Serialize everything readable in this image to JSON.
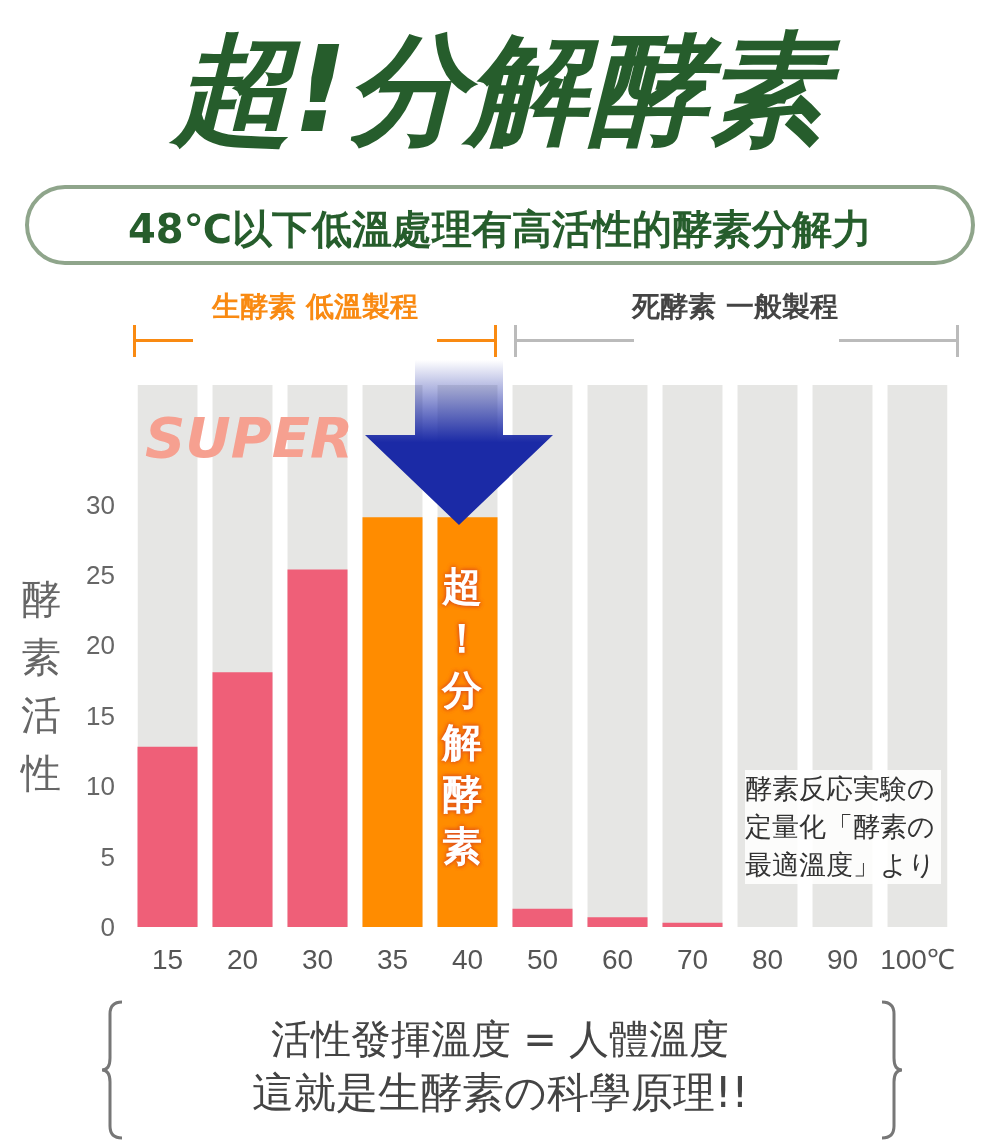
{
  "chart_data": {
    "type": "bar",
    "title": "超!分解酵素",
    "subtitle": "48℃以下低溫處理有高活性的酵素分解力",
    "ylabel": "酵素活性",
    "categories": [
      "15",
      "20",
      "30",
      "35",
      "40",
      "50",
      "60",
      "70",
      "80",
      "90",
      "100℃"
    ],
    "values": [
      12.8,
      18.1,
      25.4,
      29.1,
      29.1,
      1.3,
      0.7,
      0.3,
      0,
      0,
      0
    ],
    "colors": [
      "#ef5f78",
      "#ef5f78",
      "#ef5f78",
      "#ff8c00",
      "#ff8c00",
      "#ef5f78",
      "#ef5f78",
      "#ef5f78",
      "#ef5f78",
      "#ef5f78",
      "#ef5f78"
    ],
    "ylim": [
      0,
      38.5
    ],
    "yticks": [
      0,
      5,
      10,
      15,
      20,
      25,
      30
    ],
    "annotations": [
      "生酵素 低溫製程",
      "死酵素 一般製程",
      "SUPER",
      "超！分解酵素",
      "酵素反応実験の定量化「酵素の最適溫度」より",
      "活性發揮溫度 = 人體溫度",
      "這就是生酵素の科學原理!!"
    ]
  }
}
